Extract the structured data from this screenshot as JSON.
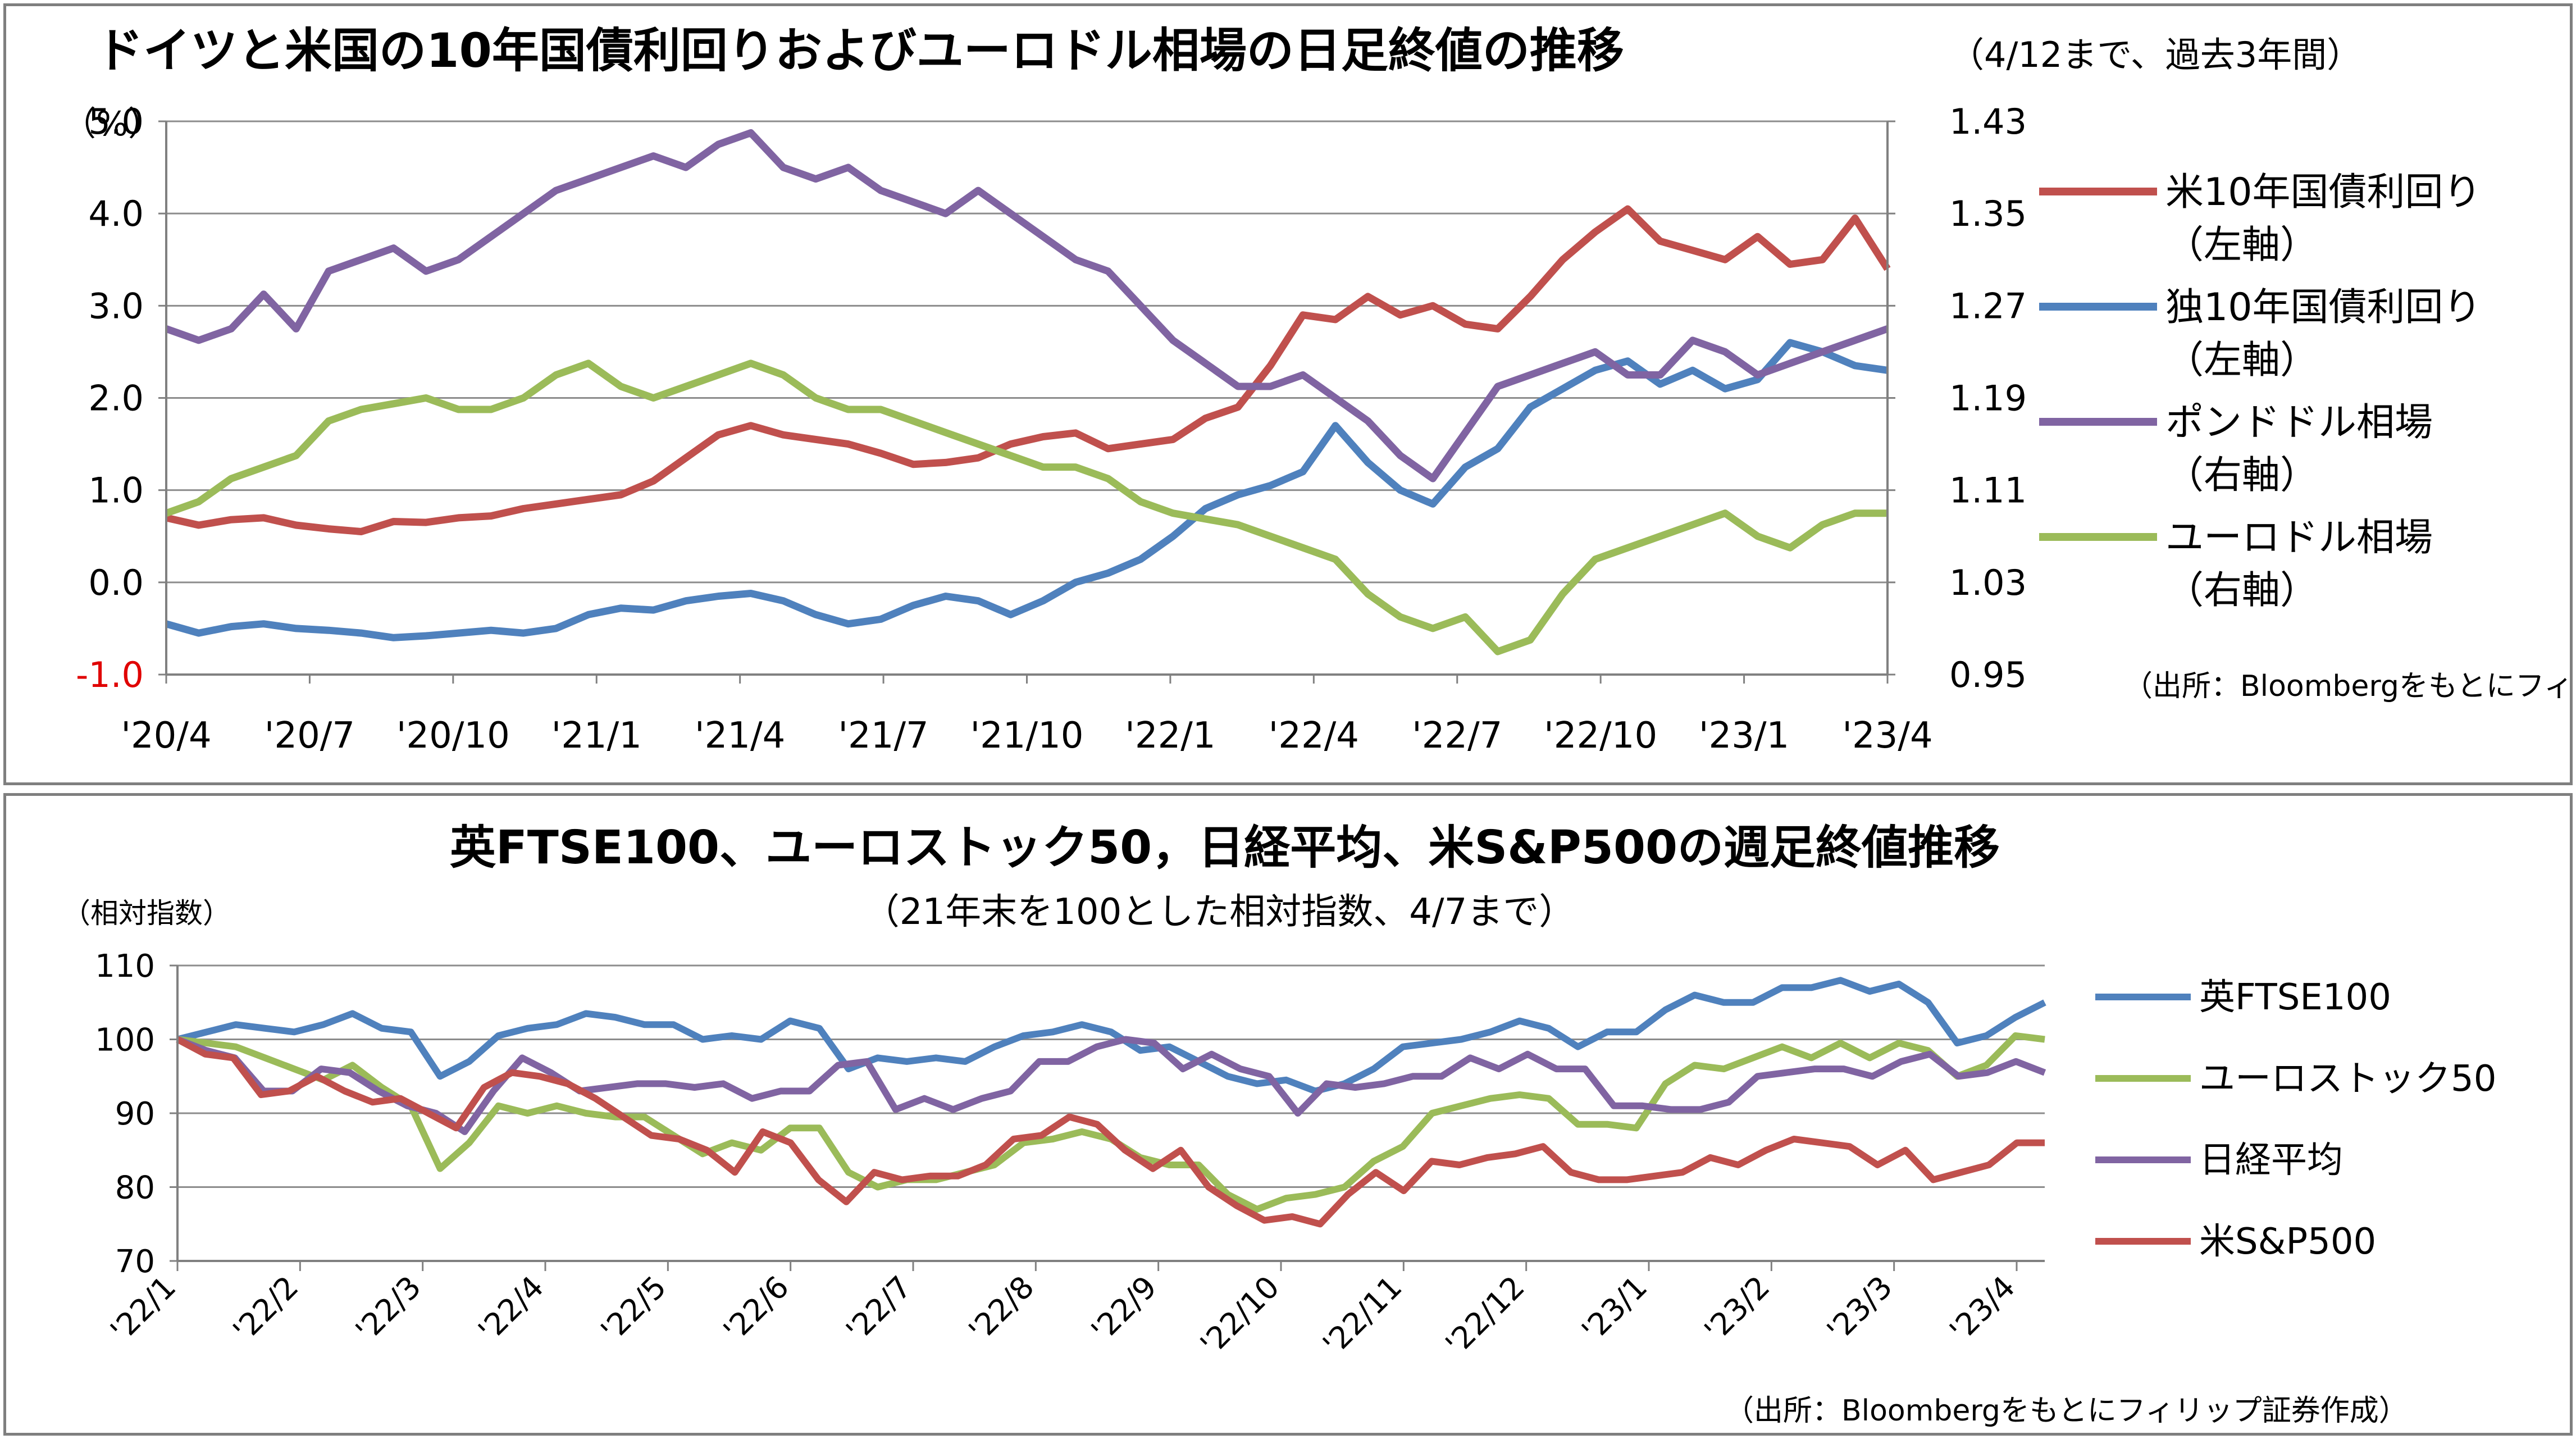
{
  "chart_data": [
    {
      "type": "line",
      "title": "ドイツと米国の10年国債利回りおよびユーロドル相場の日足終値の推移",
      "subtitle": "（4/12まで、過去3年間）",
      "y_left_unit": "（%）",
      "y_left_ticks": [
        "5.0",
        "4.0",
        "3.0",
        "2.0",
        "1.0",
        "0.0",
        "-1.0"
      ],
      "y_left_range": [
        -1.0,
        5.0
      ],
      "y_right_ticks": [
        "1.43",
        "1.35",
        "1.27",
        "1.19",
        "1.11",
        "1.03",
        "0.95"
      ],
      "y_right_range": [
        0.95,
        1.43
      ],
      "x_ticks": [
        "'20/4",
        "'20/7",
        "'20/10",
        "'21/1",
        "'21/4",
        "'21/7",
        "'21/10",
        "'22/1",
        "'22/4",
        "'22/7",
        "'22/10",
        "'23/1",
        "'23/4"
      ],
      "grid": true,
      "legend_position": "right",
      "source": "（出所：Bloombergをもとにフィリップ証券作成）",
      "series": [
        {
          "name": "米10年国債利回り",
          "axis_note": "（左軸）",
          "axis": "left",
          "color": "#c0504d",
          "values": [
            0.7,
            0.62,
            0.68,
            0.7,
            0.62,
            0.58,
            0.55,
            0.66,
            0.65,
            0.7,
            0.72,
            0.8,
            0.85,
            0.9,
            0.95,
            1.1,
            1.35,
            1.6,
            1.7,
            1.6,
            1.55,
            1.5,
            1.4,
            1.28,
            1.3,
            1.35,
            1.5,
            1.58,
            1.62,
            1.45,
            1.5,
            1.55,
            1.78,
            1.9,
            2.35,
            2.9,
            2.85,
            3.1,
            2.9,
            3.0,
            2.8,
            2.75,
            3.1,
            3.5,
            3.8,
            4.05,
            3.7,
            3.6,
            3.5,
            3.75,
            3.45,
            3.5,
            3.95,
            3.4
          ]
        },
        {
          "name": "独10年国債利回り",
          "axis_note": "（左軸）",
          "axis": "left",
          "color": "#4f81bd",
          "values": [
            -0.45,
            -0.55,
            -0.48,
            -0.45,
            -0.5,
            -0.52,
            -0.55,
            -0.6,
            -0.58,
            -0.55,
            -0.52,
            -0.55,
            -0.5,
            -0.35,
            -0.28,
            -0.3,
            -0.2,
            -0.15,
            -0.12,
            -0.2,
            -0.35,
            -0.45,
            -0.4,
            -0.25,
            -0.15,
            -0.2,
            -0.35,
            -0.2,
            0.0,
            0.1,
            0.25,
            0.5,
            0.8,
            0.95,
            1.05,
            1.2,
            1.7,
            1.3,
            1.0,
            0.85,
            1.25,
            1.45,
            1.9,
            2.1,
            2.3,
            2.4,
            2.15,
            2.3,
            2.1,
            2.2,
            2.6,
            2.5,
            2.35,
            2.3
          ]
        },
        {
          "name": "ポンドドル相場",
          "axis_note": "（右軸）",
          "axis": "right",
          "color": "#8064a2",
          "values": [
            1.25,
            1.24,
            1.25,
            1.28,
            1.25,
            1.3,
            1.31,
            1.32,
            1.3,
            1.31,
            1.33,
            1.35,
            1.37,
            1.38,
            1.39,
            1.4,
            1.39,
            1.41,
            1.42,
            1.39,
            1.38,
            1.39,
            1.37,
            1.36,
            1.35,
            1.37,
            1.35,
            1.33,
            1.31,
            1.3,
            1.27,
            1.24,
            1.22,
            1.2,
            1.2,
            1.21,
            1.19,
            1.17,
            1.14,
            1.12,
            1.16,
            1.2,
            1.21,
            1.22,
            1.23,
            1.21,
            1.21,
            1.24,
            1.23,
            1.21,
            1.22,
            1.23,
            1.24,
            1.25
          ]
        },
        {
          "name": "ユーロドル相場",
          "axis_note": "（右軸）",
          "axis": "right",
          "color": "#9bbb59",
          "values": [
            1.09,
            1.1,
            1.12,
            1.13,
            1.14,
            1.17,
            1.18,
            1.185,
            1.19,
            1.18,
            1.18,
            1.19,
            1.21,
            1.22,
            1.2,
            1.19,
            1.2,
            1.21,
            1.22,
            1.21,
            1.19,
            1.18,
            1.18,
            1.17,
            1.16,
            1.15,
            1.14,
            1.13,
            1.13,
            1.12,
            1.1,
            1.09,
            1.085,
            1.08,
            1.07,
            1.06,
            1.05,
            1.02,
            1.0,
            0.99,
            1.0,
            0.97,
            0.98,
            1.02,
            1.05,
            1.06,
            1.07,
            1.08,
            1.09,
            1.07,
            1.06,
            1.08,
            1.09,
            1.09
          ]
        }
      ]
    },
    {
      "type": "line",
      "title": "英FTSE100、ユーロストック50，日経平均、米S&P500の週足終値推移",
      "subtitle": "（21年末を100とした相対指数、4/7まで）",
      "y_unit": "（相対指数）",
      "y_ticks": [
        "110",
        "100",
        "90",
        "80",
        "70"
      ],
      "y_range": [
        70,
        110
      ],
      "x_ticks": [
        "'22/1",
        "'22/2",
        "'22/3",
        "'22/4",
        "'22/5",
        "'22/6",
        "'22/7",
        "'22/8",
        "'22/9",
        "'22/10",
        "'22/11",
        "'22/12",
        "'23/1",
        "'23/2",
        "'23/3",
        "'23/4"
      ],
      "grid": true,
      "legend_position": "right",
      "source": "（出所：Bloombergをもとにフィリップ証券作成）",
      "series": [
        {
          "name": "英FTSE100",
          "color": "#4f81bd",
          "values": [
            100,
            101,
            102,
            101.5,
            101,
            102,
            103.5,
            101.5,
            101,
            95,
            97,
            100.5,
            101.5,
            102,
            103.5,
            103,
            102,
            102,
            100,
            100.5,
            100,
            102.5,
            101.5,
            96,
            97.5,
            97,
            97.5,
            97,
            99,
            100.5,
            101,
            102,
            101,
            98.5,
            99,
            97,
            95,
            94,
            94.5,
            93,
            94,
            96,
            99,
            99.5,
            100,
            101,
            102.5,
            101.5,
            99,
            101,
            101,
            104,
            106,
            105,
            105,
            107,
            107,
            108,
            106.5,
            107.5,
            105,
            99.5,
            100.5,
            103,
            105
          ]
        },
        {
          "name": "ユーロストック50",
          "color": "#9bbb59",
          "values": [
            100,
            99.5,
            99,
            97.5,
            96,
            94.5,
            96.5,
            93.5,
            91,
            82.5,
            86,
            91,
            90,
            91,
            90,
            89.5,
            89.5,
            87,
            84.5,
            86,
            85,
            88,
            88,
            82,
            80,
            81,
            81,
            82,
            83,
            86,
            86.5,
            87.5,
            86.5,
            84,
            83,
            83,
            79,
            77,
            78.5,
            79,
            80,
            83.5,
            85.5,
            90,
            91,
            92,
            92.5,
            92,
            88.5,
            88.5,
            88,
            94,
            96.5,
            96,
            97.5,
            99,
            97.5,
            99.5,
            97.5,
            99.5,
            98.5,
            95,
            96.5,
            100.5,
            100
          ]
        },
        {
          "name": "日経平均",
          "color": "#8064a2",
          "values": [
            100,
            98.5,
            97.5,
            93,
            93,
            96,
            95.5,
            93,
            91,
            90,
            87.5,
            93,
            97.5,
            95.5,
            93,
            93.5,
            94,
            94,
            93.5,
            94,
            92,
            93,
            93,
            96.5,
            97,
            90.5,
            92,
            90.5,
            92,
            93,
            97,
            97,
            99,
            100,
            99.5,
            96,
            98,
            96,
            95,
            90,
            94,
            93.5,
            94,
            95,
            95,
            97.5,
            96,
            98,
            96,
            96,
            91,
            91,
            90.5,
            90.5,
            91.5,
            95,
            95.5,
            96,
            96,
            95,
            97,
            98,
            95,
            95.5,
            97,
            95.5
          ]
        },
        {
          "name": "米S&P500",
          "color": "#c0504d",
          "values": [
            100,
            98,
            97.5,
            92.5,
            93,
            95,
            93,
            91.5,
            92,
            90,
            88,
            93.5,
            95.5,
            95,
            94,
            92,
            89.5,
            87,
            86.5,
            85,
            82,
            87.5,
            86,
            81,
            78,
            82,
            81,
            81.5,
            81.5,
            83,
            86.5,
            87,
            89.5,
            88.5,
            85,
            82.5,
            85,
            80,
            77.5,
            75.5,
            76,
            75,
            79,
            82,
            79.5,
            83.5,
            83,
            84,
            84.5,
            85.5,
            82,
            81,
            81,
            81.5,
            82,
            84,
            83,
            85,
            86.5,
            86,
            85.5,
            83,
            85,
            81,
            82,
            83,
            86,
            86
          ]
        }
      ]
    }
  ]
}
